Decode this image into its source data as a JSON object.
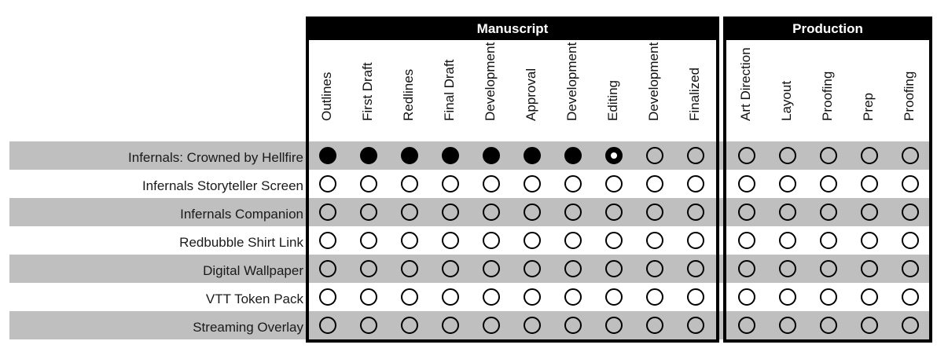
{
  "groups": [
    {
      "title": "Manuscript",
      "columns": [
        "Outlines",
        "First Draft",
        "Redlines",
        "Final Draft",
        "Development",
        "Approval",
        "Development",
        "Editing",
        "Development",
        "Finalized"
      ]
    },
    {
      "title": "Production",
      "columns": [
        "Art Direction",
        "Layout",
        "Proofing",
        "Prep",
        "Proofing"
      ]
    }
  ],
  "rows": [
    {
      "label": "Infernals: Crowned by Hellfire",
      "status": [
        "done",
        "done",
        "done",
        "done",
        "done",
        "done",
        "done",
        "in-progress",
        "open",
        "open",
        "open",
        "open",
        "open",
        "open",
        "open"
      ]
    },
    {
      "label": "Infernals Storyteller Screen",
      "status": [
        "open",
        "open",
        "open",
        "open",
        "open",
        "open",
        "open",
        "open",
        "open",
        "open",
        "open",
        "open",
        "open",
        "open",
        "open"
      ]
    },
    {
      "label": "Infernals Companion",
      "status": [
        "open",
        "open",
        "open",
        "open",
        "open",
        "open",
        "open",
        "open",
        "open",
        "open",
        "open",
        "open",
        "open",
        "open",
        "open"
      ]
    },
    {
      "label": "Redbubble Shirt Link",
      "status": [
        "open",
        "open",
        "open",
        "open",
        "open",
        "open",
        "open",
        "open",
        "open",
        "open",
        "open",
        "open",
        "open",
        "open",
        "open"
      ]
    },
    {
      "label": "Digital Wallpaper",
      "status": [
        "open",
        "open",
        "open",
        "open",
        "open",
        "open",
        "open",
        "open",
        "open",
        "open",
        "open",
        "open",
        "open",
        "open",
        "open"
      ]
    },
    {
      "label": "VTT Token Pack",
      "status": [
        "open",
        "open",
        "open",
        "open",
        "open",
        "open",
        "open",
        "open",
        "open",
        "open",
        "open",
        "open",
        "open",
        "open",
        "open"
      ]
    },
    {
      "label": "Streaming Overlay",
      "status": [
        "open",
        "open",
        "open",
        "open",
        "open",
        "open",
        "open",
        "open",
        "open",
        "open",
        "open",
        "open",
        "open",
        "open",
        "open"
      ]
    }
  ]
}
